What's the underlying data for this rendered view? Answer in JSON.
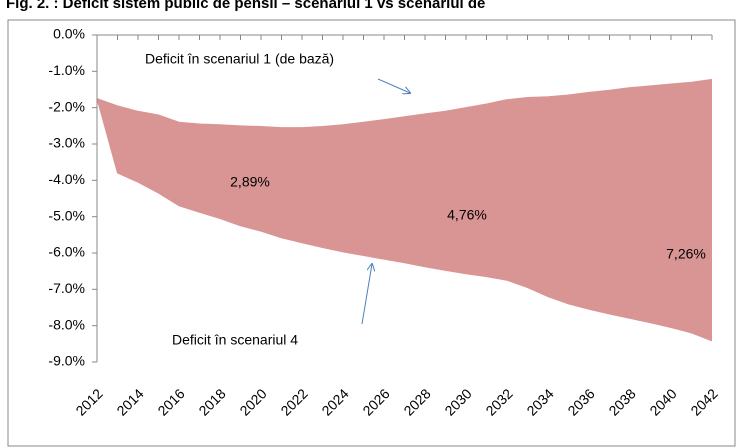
{
  "chart_data": {
    "type": "area_band",
    "title": "Fig. 2. : Deficit sistem public de pensii – scenariul 1 vs scenariul de",
    "x": [
      2012,
      2013,
      2014,
      2015,
      2016,
      2017,
      2018,
      2019,
      2020,
      2021,
      2022,
      2023,
      2024,
      2025,
      2026,
      2027,
      2028,
      2029,
      2030,
      2031,
      2032,
      2033,
      2034,
      2035,
      2036,
      2037,
      2038,
      2039,
      2040,
      2041,
      2042
    ],
    "series": [
      {
        "name": "Deficit în scenariul 1 (de bază)",
        "color": "#d99594",
        "values": [
          -1.75,
          -1.95,
          -2.1,
          -2.2,
          -2.4,
          -2.45,
          -2.47,
          -2.5,
          -2.52,
          -2.55,
          -2.55,
          -2.52,
          -2.47,
          -2.4,
          -2.33,
          -2.25,
          -2.17,
          -2.1,
          -2.0,
          -1.9,
          -1.78,
          -1.72,
          -1.7,
          -1.65,
          -1.58,
          -1.52,
          -1.45,
          -1.4,
          -1.35,
          -1.3,
          -1.22
        ]
      },
      {
        "name": "Deficit în scenariul 4",
        "color": "#d99594",
        "values": [
          -1.75,
          -3.8,
          -4.05,
          -4.35,
          -4.7,
          -4.88,
          -5.05,
          -5.25,
          -5.4,
          -5.58,
          -5.72,
          -5.85,
          -5.97,
          -6.07,
          -6.17,
          -6.27,
          -6.38,
          -6.48,
          -6.57,
          -6.65,
          -6.75,
          -6.95,
          -7.2,
          -7.4,
          -7.55,
          -7.68,
          -7.8,
          -7.92,
          -8.05,
          -8.2,
          -8.42
        ]
      }
    ],
    "annotations": [
      "2,89%",
      "4,76%",
      "7,26%"
    ],
    "xlim": [
      2012,
      2042
    ],
    "xticks": [
      2012,
      2014,
      2016,
      2018,
      2020,
      2022,
      2024,
      2026,
      2028,
      2030,
      2032,
      2034,
      2036,
      2038,
      2040,
      2042
    ],
    "ylim": [
      -9,
      0
    ],
    "yticks": [
      {
        "value": 0,
        "label": "0.0%"
      },
      {
        "value": -1,
        "label": "-1.0%"
      },
      {
        "value": -2,
        "label": "-2.0%"
      },
      {
        "value": -3,
        "label": "-3.0%"
      },
      {
        "value": -4,
        "label": "-4.0%"
      },
      {
        "value": -5,
        "label": "-5.0%"
      },
      {
        "value": -6,
        "label": "-6.0%"
      },
      {
        "value": -7,
        "label": "-7.0%"
      },
      {
        "value": -8,
        "label": "-8.0%"
      },
      {
        "value": -9,
        "label": "-9.0%"
      }
    ],
    "grid": false
  }
}
